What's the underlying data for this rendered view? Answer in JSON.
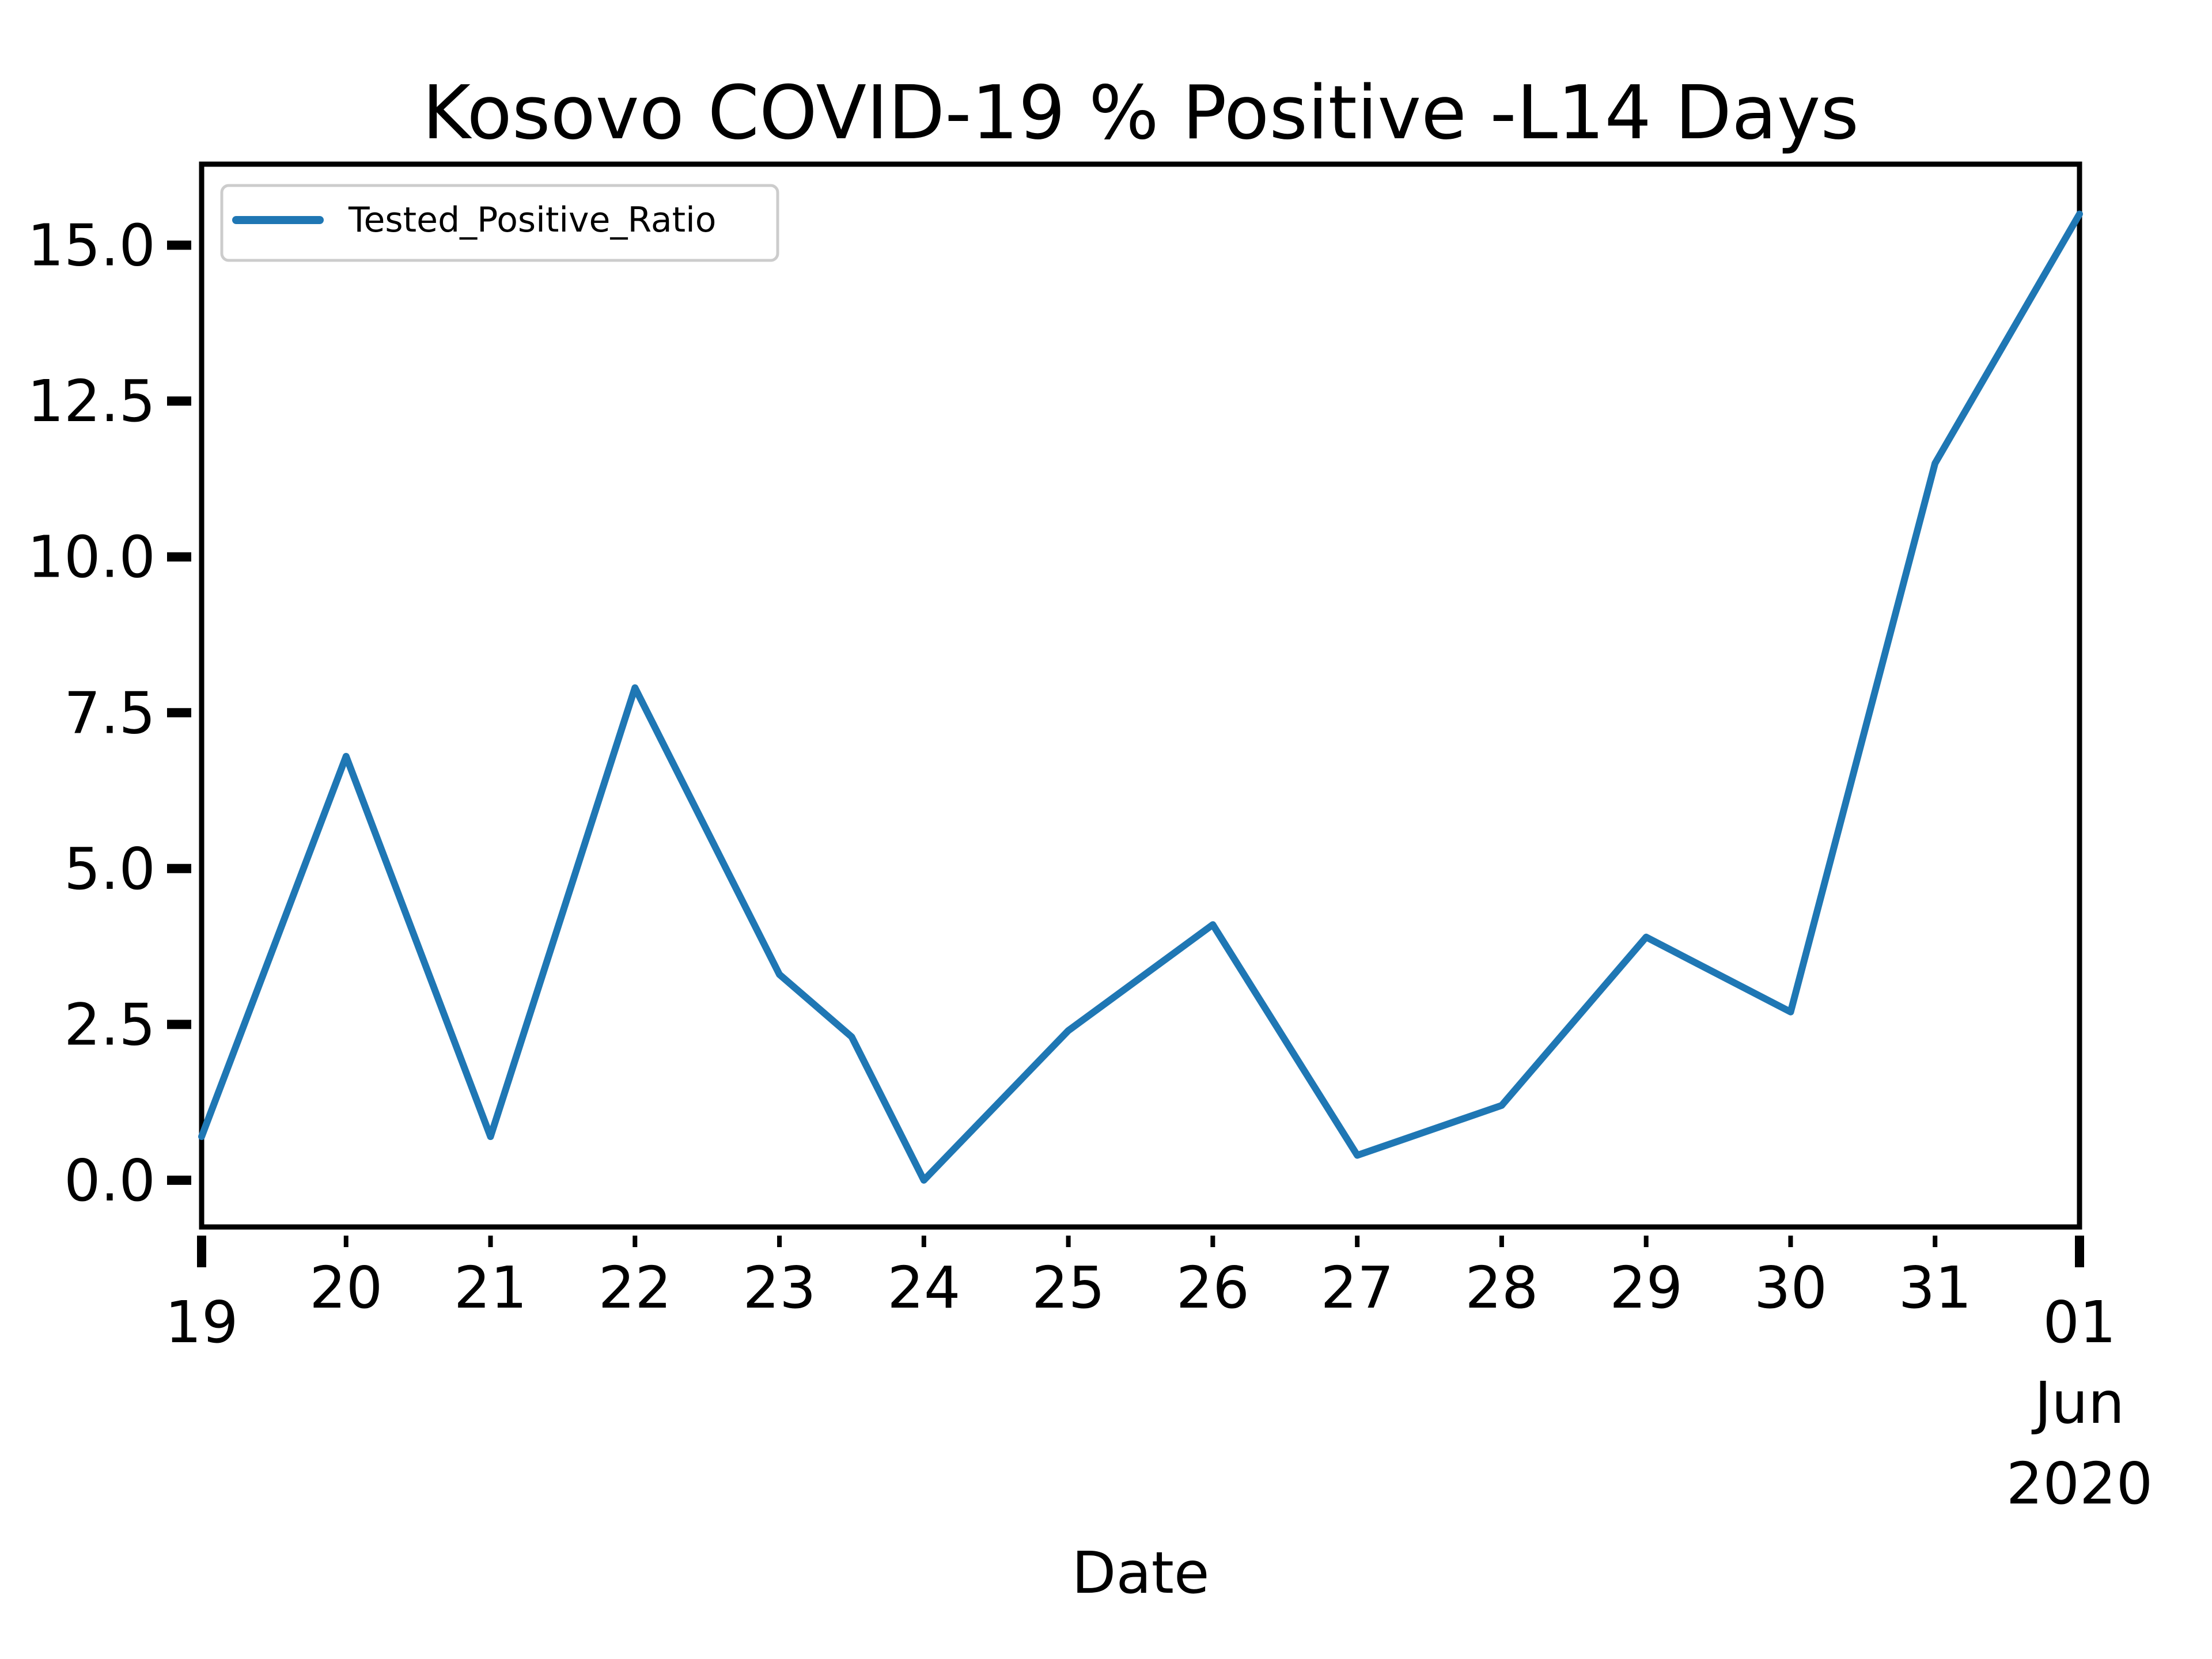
{
  "chart_data": {
    "type": "line",
    "title": "Kosovo COVID-19 % Positive -L14 Days",
    "xlabel": "Date",
    "ylabel": "",
    "x_ticks": [
      {
        "label": "19"
      },
      {
        "label": "20"
      },
      {
        "label": "21"
      },
      {
        "label": "22"
      },
      {
        "label": "23"
      },
      {
        "label": "24"
      },
      {
        "label": "25"
      },
      {
        "label": "26"
      },
      {
        "label": "27"
      },
      {
        "label": "28"
      },
      {
        "label": "29"
      },
      {
        "label": "30"
      },
      {
        "label": "31"
      },
      {
        "label": "01"
      }
    ],
    "x_secondary_labels": [
      "Jun",
      "2020"
    ],
    "y_ticks": [
      "0.0",
      "2.5",
      "5.0",
      "7.5",
      "10.0",
      "12.5",
      "15.0"
    ],
    "ylim": [
      -0.75,
      16.3
    ],
    "grid": false,
    "legend_position": "top-left",
    "series": [
      {
        "name": "Tested_Positive_Ratio",
        "color": "#1f77b4",
        "x": [
          "2020-05-19",
          "2020-05-20",
          "2020-05-21",
          "2020-05-22",
          "2020-05-23",
          "2020-05-23 12:00",
          "2020-05-24",
          "2020-05-25",
          "2020-05-26",
          "2020-05-27",
          "2020-05-28",
          "2020-05-29",
          "2020-05-30",
          "2020-05-31",
          "2020-06-01"
        ],
        "values": [
          0.7,
          6.8,
          0.7,
          7.9,
          3.3,
          2.3,
          0.0,
          2.4,
          4.1,
          0.4,
          1.2,
          3.9,
          2.7,
          11.5,
          15.5
        ]
      }
    ]
  }
}
